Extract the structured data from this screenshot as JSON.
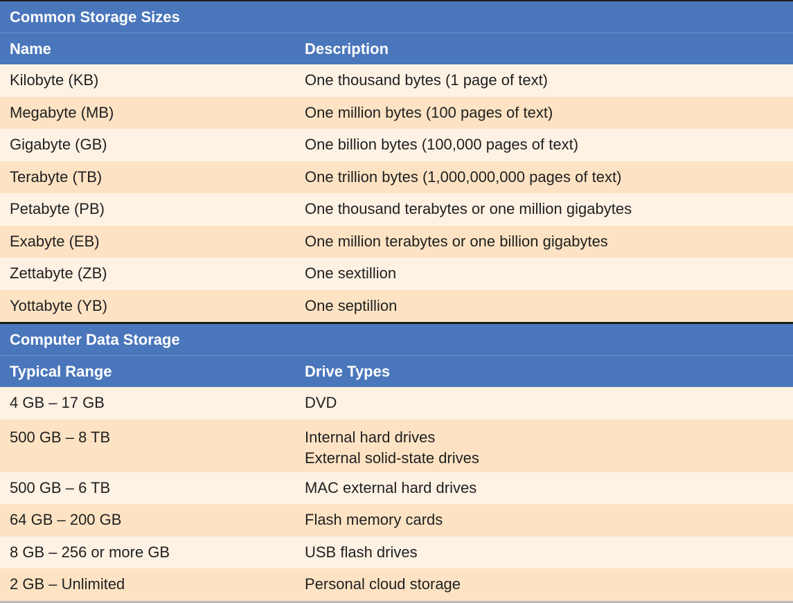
{
  "storage_sizes": {
    "title": "Common Storage Sizes",
    "headers": {
      "name": "Name",
      "description": "Description"
    },
    "rows": [
      {
        "name": "Kilobyte (KB)",
        "description": "One thousand bytes (1 page of text)"
      },
      {
        "name": "Megabyte (MB)",
        "description": "One million bytes (100 pages of text)"
      },
      {
        "name": "Gigabyte (GB)",
        "description": "One billion bytes (100,000 pages of text)"
      },
      {
        "name": "Terabyte (TB)",
        "description": "One trillion bytes (1,000,000,000 pages of text)"
      },
      {
        "name": "Petabyte (PB)",
        "description": "One thousand terabytes or one million gigabytes"
      },
      {
        "name": "Exabyte (EB)",
        "description": "One million terabytes or one billion gigabytes"
      },
      {
        "name": "Zettabyte (ZB)",
        "description": "One sextillion"
      },
      {
        "name": "Yottabyte (YB)",
        "description": "One septillion"
      }
    ]
  },
  "data_storage": {
    "title": "Computer Data Storage",
    "headers": {
      "range": "Typical Range",
      "drive_types": "Drive Types"
    },
    "rows": [
      {
        "range": "4 GB – 17 GB",
        "drive_types": [
          "DVD"
        ]
      },
      {
        "range": "500 GB – 8 TB",
        "drive_types": [
          "Internal hard drives",
          "External solid-state drives"
        ]
      },
      {
        "range": "500 GB – 6 TB",
        "drive_types": [
          "MAC external hard drives"
        ]
      },
      {
        "range": "64 GB – 200 GB",
        "drive_types": [
          "Flash memory cards"
        ]
      },
      {
        "range": "8 GB – 256 or more GB",
        "drive_types": [
          "USB flash drives"
        ]
      },
      {
        "range": "2 GB – Unlimited",
        "drive_types": [
          "Personal cloud storage"
        ]
      }
    ]
  },
  "colors": {
    "header_blue": "#4a76bb",
    "row_light": "#fef2e4",
    "row_dark": "#fde3c4"
  }
}
